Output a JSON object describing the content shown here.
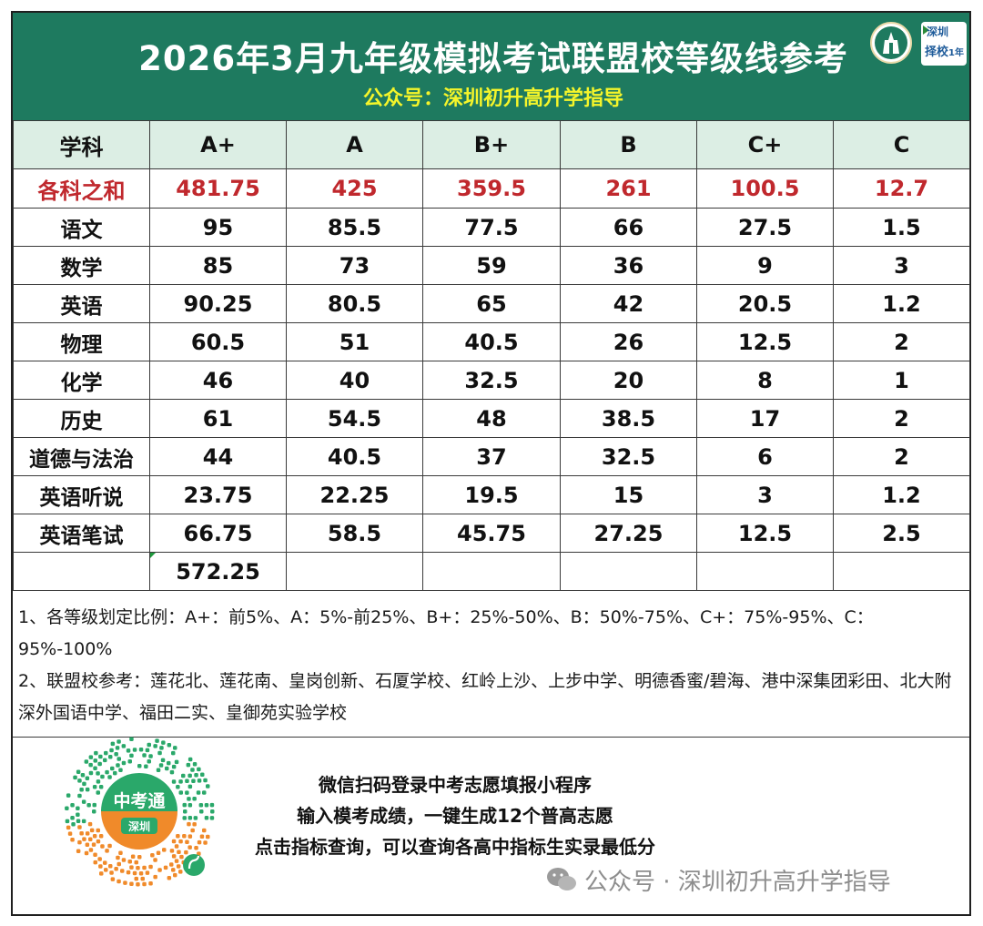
{
  "header": {
    "title": "2026年3月九年级模拟考试联盟校等级线参考",
    "subtitle": "公众号：深圳初升高升学指导",
    "logo_text_1": "深圳",
    "logo_text_2": "择校",
    "logo_text_3": "1年"
  },
  "table": {
    "headers": [
      "学科",
      "A+",
      "A",
      "B+",
      "B",
      "C+",
      "C"
    ],
    "sum_row": [
      "各科之和",
      "481.75",
      "425",
      "359.5",
      "261",
      "100.5",
      "12.7"
    ],
    "rows": [
      [
        "语文",
        "95",
        "85.5",
        "77.5",
        "66",
        "27.5",
        "1.5"
      ],
      [
        "数学",
        "85",
        "73",
        "59",
        "36",
        "9",
        "3"
      ],
      [
        "英语",
        "90.25",
        "80.5",
        "65",
        "42",
        "20.5",
        "1.2"
      ],
      [
        "物理",
        "60.5",
        "51",
        "40.5",
        "26",
        "12.5",
        "2"
      ],
      [
        "化学",
        "46",
        "40",
        "32.5",
        "20",
        "8",
        "1"
      ],
      [
        "历史",
        "61",
        "54.5",
        "48",
        "38.5",
        "17",
        "2"
      ],
      [
        "道德与法治",
        "44",
        "40.5",
        "37",
        "32.5",
        "6",
        "2"
      ],
      [
        "英语听说",
        "23.75",
        "22.25",
        "19.5",
        "15",
        "3",
        "1.2"
      ],
      [
        "英语笔试",
        "66.75",
        "58.5",
        "45.75",
        "27.25",
        "12.5",
        "2.5"
      ]
    ],
    "extra_row": [
      "",
      "572.25",
      "",
      "",
      "",
      "",
      ""
    ]
  },
  "notes": {
    "line1": "1、各等级划定比例：A+：前5%、A：5%-前25%、B+：25%-50%、B：50%-75%、C+：75%-95%、C：95%-100%",
    "line2": "2、联盟校参考：莲花北、莲花南、皇岗创新、石厦学校、红岭上沙、上步中学、明德香蜜/碧海、港中深集团彩田、北大附深外国语中学、福田二实、皇御苑实验学校"
  },
  "promo": {
    "line1": "微信扫码登录中考志愿填报小程序",
    "line2": "输入模考成绩，一键生成12个普高志愿",
    "line3": "点击指标查询，可以查询各高中指标生实录最低分",
    "qr_title": "中考通",
    "qr_sub": "深圳"
  },
  "watermark": "公众号 · 深圳初升高升学指导",
  "colors": {
    "header_bg": "#1e7a5f",
    "title": "#ffffff",
    "subtitle": "#f5f52a",
    "head_row_bg": "#dceee4",
    "sum_text": "#c0282d",
    "qr_green": "#2aa86a",
    "qr_orange": "#f08a2a"
  }
}
